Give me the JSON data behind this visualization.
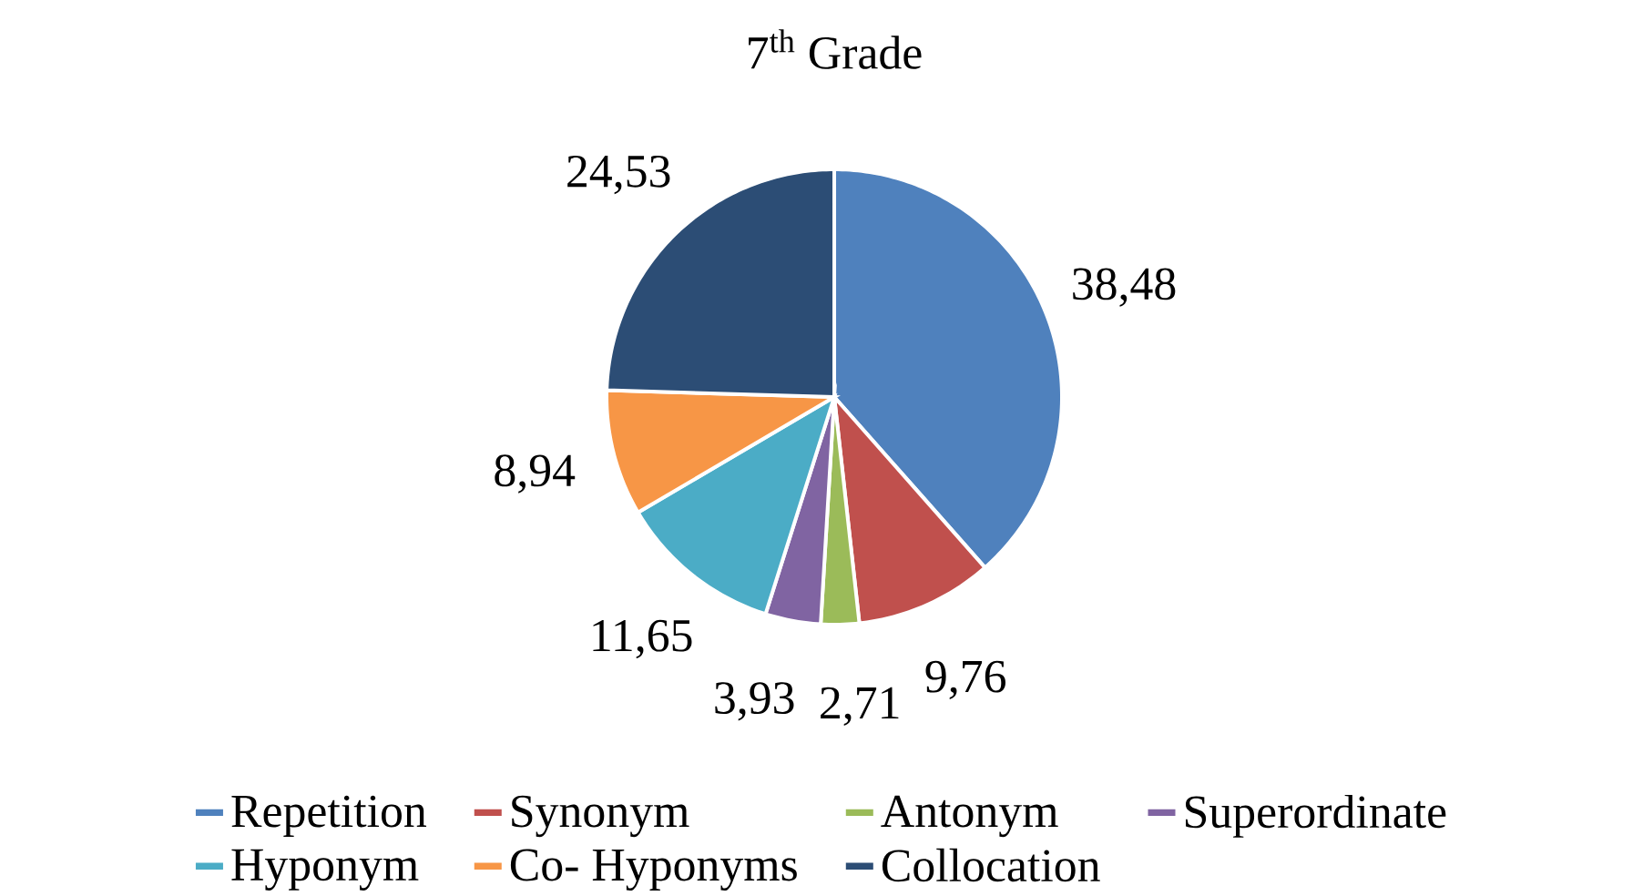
{
  "chart_data": {
    "type": "pie",
    "title": "7$^{th}$ Grade",
    "categories": [
      "Repetition",
      "Synonym",
      "Antonym",
      "Superordinate",
      "Hyponym",
      "Co- Hyponyms",
      "Collocation"
    ],
    "values": [
      38.48,
      9.76,
      2.71,
      3.93,
      11.65,
      8.94,
      24.53
    ],
    "value_labels": [
      "38,48",
      "9,76",
      "2,71",
      "3,93",
      "11,65",
      "8,94",
      "24,53"
    ],
    "colors": [
      "#4f81bd",
      "#c0504d",
      "#9bbb59",
      "#8064a2",
      "#4bacc6",
      "#f79646",
      "#2c4d75"
    ],
    "legend": "bottom"
  }
}
